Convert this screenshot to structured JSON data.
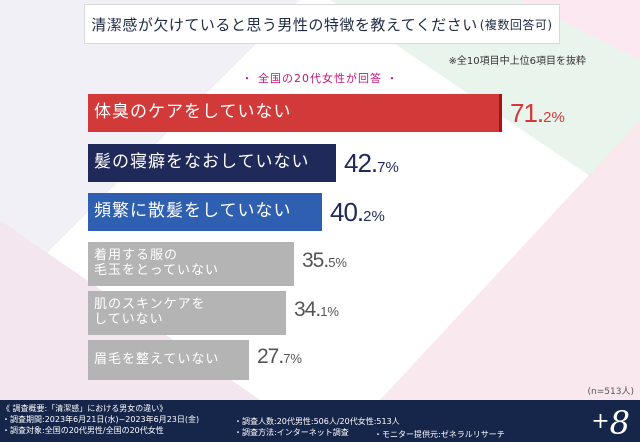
{
  "title": "清潔感が欠けていると思う男性の特徴を教えてください",
  "title_sub": "(複数回答可)",
  "note": "※全10項目中上位6項目を抜粋",
  "respondent": "・ 全国の20代女性が回答 ・",
  "sample_size": "(n=513人)",
  "colors": {
    "red": "#d23a3a",
    "navy": "#1f2a5a",
    "blue": "#2f5fb0",
    "gray": "#b4b4b4"
  },
  "chart_data": {
    "type": "bar",
    "orientation": "horizontal",
    "title": "清潔感が欠けていると思う男性の特徴を教えてください(複数回答可)",
    "xlabel": "",
    "ylabel": "",
    "xlim": [
      0,
      71.2
    ],
    "categories": [
      "体臭のケアをしていない",
      "髪の寝癖をなおしていない",
      "頻繁に散髪をしていない",
      "着用する服の\n毛玉をとっていない",
      "肌のスキンケアを\nしていない",
      "眉毛を整えていない"
    ],
    "values": [
      71.2,
      42.7,
      40.2,
      35.5,
      34.1,
      27.7
    ],
    "value_labels": [
      {
        "int": "71.",
        "dec": "2%"
      },
      {
        "int": "42.",
        "dec": "7%"
      },
      {
        "int": "40.",
        "dec": "2%"
      },
      {
        "int": "35.",
        "dec": "5%"
      },
      {
        "int": "34.",
        "dec": "1%"
      },
      {
        "int": "27.",
        "dec": "7%"
      }
    ],
    "bar_colors": [
      "red",
      "navy",
      "blue",
      "gray",
      "gray",
      "gray"
    ]
  },
  "footer": {
    "line1": "《 調査概要:「清潔感」における男女の違い》",
    "line2": "・調査期間:2023年6月21日(水)~2023年6月23日(金)",
    "line3": "・調査対象:全国の20代男性/全国の20代女性",
    "line4": "・調査人数:20代男性:506人/20代女性:513人",
    "line5": "・調査方法:インターネット調査",
    "line6": "・モニター提供元:ゼネラルリサーチ",
    "logo": "8",
    "logo_plus": "+"
  }
}
